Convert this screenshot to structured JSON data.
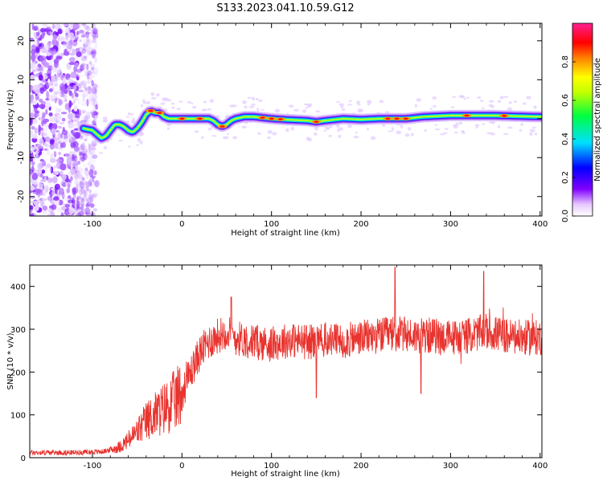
{
  "title": "S133.2023.041.10.59.G12",
  "chart_data": [
    {
      "type": "heatmap",
      "title": "",
      "xlabel": "Height of straight line (km)",
      "ylabel": "Frequency (Hz)",
      "xlim": [
        -170,
        402
      ],
      "ylim": [
        -25,
        24.5
      ],
      "xticks": [
        -100,
        0,
        100,
        200,
        300,
        400
      ],
      "yticks": [
        -20,
        -10,
        0,
        10,
        20
      ],
      "xtick_labels": [
        "-100",
        "0",
        "100",
        "200",
        "300",
        "400"
      ],
      "ytick_labels": [
        "-20",
        "-10",
        "0",
        "10",
        "20"
      ],
      "colorbar": {
        "label": "Normalized spectral amplitude",
        "range": [
          0,
          1
        ],
        "ticks": [
          0.0,
          0.2,
          0.4,
          0.6,
          0.8
        ],
        "tick_labels": [
          "0.0",
          "0.2",
          "0.4",
          "0.6",
          "0.8"
        ],
        "colormap": "rainbow (white-purple-blue-cyan-green-yellow-red-pink)"
      },
      "ridge": {
        "x": [
          -110,
          -100,
          -95,
          -90,
          -85,
          -80,
          -75,
          -70,
          -65,
          -60,
          -55,
          -50,
          -45,
          -40,
          -35,
          -30,
          -25,
          -20,
          -15,
          -10,
          -5,
          0,
          10,
          20,
          30,
          35,
          40,
          45,
          50,
          55,
          60,
          70,
          80,
          100,
          120,
          140,
          150,
          160,
          180,
          200,
          220,
          250,
          270,
          300,
          320,
          350,
          380,
          400
        ],
        "y": [
          -2.5,
          -3,
          -4,
          -5,
          -4.5,
          -3,
          -1.5,
          -1.5,
          -2,
          -3,
          -3.5,
          -2.5,
          -1,
          1,
          2,
          1.5,
          1.5,
          0.5,
          0,
          0,
          0,
          0,
          0,
          0,
          0,
          -0.5,
          -1.5,
          -2,
          -1.5,
          -0.5,
          0,
          0.5,
          0.5,
          0,
          -0.3,
          -0.5,
          -0.8,
          -0.5,
          0,
          -0.2,
          0,
          0,
          0.5,
          0.8,
          0.8,
          0.8,
          0.6,
          0.5
        ]
      },
      "noise_region": {
        "x": [
          -170,
          -105
        ],
        "y": [
          -25,
          24.5
        ]
      },
      "grid": false
    },
    {
      "type": "line",
      "title": "",
      "xlabel": "Height of straight line (km)",
      "ylabel": "SNR (10 * v/v)",
      "xlim": [
        -170,
        402
      ],
      "ylim": [
        0,
        450
      ],
      "xticks": [
        -100,
        0,
        100,
        200,
        300,
        400
      ],
      "yticks": [
        0,
        100,
        200,
        300,
        400
      ],
      "xtick_labels": [
        "-100",
        "0",
        "100",
        "200",
        "300",
        "400"
      ],
      "ytick_labels": [
        "0",
        "100",
        "200",
        "300",
        "400"
      ],
      "color": "#e8332e",
      "series_envelope": {
        "x": [
          -170,
          -120,
          -90,
          -80,
          -70,
          -60,
          -50,
          -40,
          -30,
          -20,
          -10,
          0,
          10,
          20,
          30,
          40,
          50,
          60,
          80,
          100,
          120,
          140,
          160,
          180,
          200,
          220,
          240,
          260,
          280,
          300,
          320,
          340,
          360,
          380,
          402
        ],
        "y": [
          12,
          12,
          14,
          18,
          25,
          40,
          60,
          85,
          100,
          115,
          130,
          150,
          200,
          245,
          270,
          285,
          295,
          280,
          270,
          265,
          275,
          270,
          275,
          272,
          280,
          285,
          290,
          285,
          285,
          280,
          285,
          295,
          285,
          280,
          280
        ]
      },
      "peaks": [
        {
          "x": 55,
          "y": 375
        },
        {
          "x": 238,
          "y": 445
        },
        {
          "x": 337,
          "y": 435
        },
        {
          "x": 150,
          "y": 140
        },
        {
          "x": 267,
          "y": 150
        }
      ],
      "grid": false
    }
  ]
}
